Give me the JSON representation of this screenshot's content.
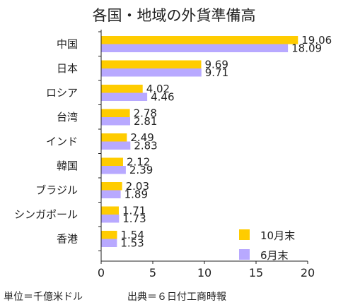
{
  "chart_data": {
    "type": "bar",
    "orientation": "horizontal",
    "title": "各国・地域の外貨準備高",
    "categories": [
      "中国",
      "日本",
      "ロシア",
      "台湾",
      "インド",
      "韓国",
      "ブラジル",
      "シンガポール",
      "香港"
    ],
    "series": [
      {
        "name": "10月末",
        "color": "#ffcc00",
        "values": [
          19.06,
          9.69,
          4.02,
          2.78,
          2.49,
          2.12,
          2.03,
          1.71,
          1.54
        ],
        "labels": [
          "19.06",
          "9.69",
          "4.02",
          "2.78",
          "2.49",
          "2.12",
          "2.03",
          "1.71",
          "1.54"
        ]
      },
      {
        "name": "6月末",
        "color": "#b8a9ff",
        "values": [
          18.09,
          9.71,
          4.46,
          2.81,
          2.83,
          2.39,
          1.89,
          1.73,
          1.53
        ],
        "labels": [
          "18.09",
          "9.71",
          "4.46",
          "2.81",
          "2.83",
          "2.39",
          "1.89",
          "1.73",
          "1.53"
        ]
      }
    ],
    "xlim": [
      0,
      20
    ],
    "xticks": [
      0,
      5,
      10,
      15,
      20
    ],
    "xtick_labels": [
      "0",
      "5",
      "10",
      "15",
      "20"
    ],
    "grid": false,
    "legend_position": "bottom-right",
    "xlabel": "",
    "ylabel": ""
  },
  "footer": {
    "unit": "単位＝千億米ドル",
    "source": "出典＝６日付工商時報"
  }
}
